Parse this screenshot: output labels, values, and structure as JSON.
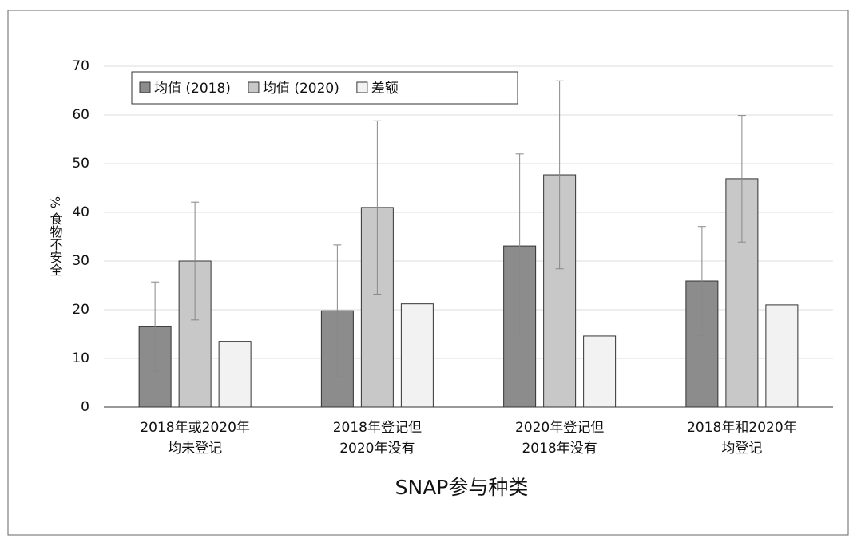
{
  "chart_data": {
    "type": "bar",
    "y_label": "% 食物不安全",
    "x_label": "SNAP参与种类",
    "categories": [
      [
        "2018年或2020年",
        "均未登记"
      ],
      [
        "2018年登记但",
        "2020年没有"
      ],
      [
        "2020年登记但",
        "2018年没有"
      ],
      [
        "2018年和2020年",
        "均登记"
      ]
    ],
    "series": [
      {
        "name": "均值 (2018)",
        "color": "#8c8c8c",
        "values": [
          16.5,
          19.8,
          33.1,
          25.9
        ],
        "errors": [
          9.2,
          13.5,
          18.9,
          11.2
        ]
      },
      {
        "name": "均值 (2020)",
        "color": "#c8c8c8",
        "values": [
          30.0,
          41.0,
          47.7,
          46.9
        ],
        "errors": [
          12.1,
          17.8,
          19.3,
          13.0
        ]
      },
      {
        "name": "差额",
        "color": "#f2f2f2",
        "values": [
          13.5,
          21.2,
          14.6,
          21.0
        ]
      }
    ],
    "ylim": [
      0,
      70
    ],
    "yticks": [
      0,
      10,
      20,
      30,
      40,
      50,
      60,
      70
    ],
    "grid": true
  }
}
